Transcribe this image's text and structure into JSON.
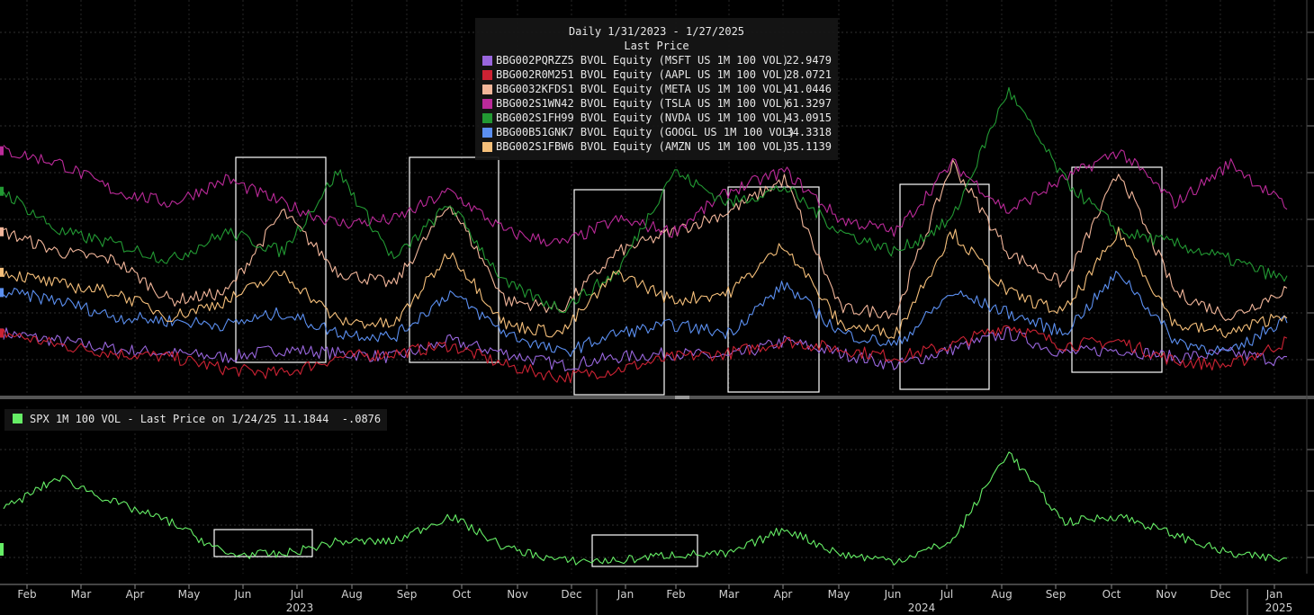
{
  "upper_legend": {
    "title": "Daily 1/31/2023 - 1/27/2025",
    "subtitle": "Last Price",
    "items": [
      {
        "label": "BBG002PQRZZ5 BVOL Equity (MSFT US 1M 100 VOL)",
        "value": "22.9479",
        "color": "#9966dd"
      },
      {
        "label": "BBG002R0M251 BVOL Equity (AAPL US 1M 100 VOL)",
        "value": "28.0721",
        "color": "#cc2233"
      },
      {
        "label": "BBG0032KFDS1 BVOL Equity (META US 1M 100 VOL)",
        "value": "41.0446",
        "color": "#f2b69a"
      },
      {
        "label": "BBG002S1WN42 BVOL Equity (TSLA US 1M 100 VOL)",
        "value": "61.3297",
        "color": "#bb2a99"
      },
      {
        "label": "BBG002S1FH99 BVOL Equity (NVDA US 1M 100 VOL)",
        "value": "43.0915",
        "color": "#229933"
      },
      {
        "label": "BBG00B51GNK7 BVOL Equity (GOOGL US 1M 100 VOL)",
        "value": "34.3318",
        "color": "#5b8ff0"
      },
      {
        "label": "BBG002S1FBW6 BVOL Equity (AMZN US 1M 100 VOL)",
        "value": "35.1139",
        "color": "#f5bf7a"
      }
    ]
  },
  "lower_legend": {
    "text": "SPX 1M 100 VOL - Last Price on 1/24/25 11.1844  -.0876",
    "color": "#66ee66"
  },
  "x_axis": {
    "months": [
      "Feb",
      "Mar",
      "Apr",
      "May",
      "Jun",
      "Jul",
      "Aug",
      "Sep",
      "Oct",
      "Nov",
      "Dec",
      "Jan",
      "Feb",
      "Mar",
      "Apr",
      "May",
      "Jun",
      "Jul",
      "Aug",
      "Sep",
      "Oct",
      "Nov",
      "Dec",
      "Jan"
    ],
    "years": [
      "2023",
      "2024",
      "2025"
    ]
  },
  "chart_data": [
    {
      "type": "line",
      "title": "Daily 1/31/2023 - 1/27/2025",
      "subtitle": "Last Price",
      "x": [
        "2023-02",
        "2023-03",
        "2023-04",
        "2023-05",
        "2023-06",
        "2023-07",
        "2023-08",
        "2023-09",
        "2023-10",
        "2023-11",
        "2023-12",
        "2024-01",
        "2024-02",
        "2024-03",
        "2024-04",
        "2024-05",
        "2024-06",
        "2024-07",
        "2024-08",
        "2024-09",
        "2024-10",
        "2024-11",
        "2024-12",
        "2025-01"
      ],
      "ylim": [
        15,
        110
      ],
      "grid": true,
      "legend_position": "top-center",
      "series": [
        {
          "name": "BBG002PQRZZ5 BVOL Equity (MSFT US 1M 100 VOL)",
          "color": "#9966dd",
          "values": [
            30,
            28,
            26,
            25,
            24,
            26,
            25,
            24,
            28,
            25,
            22,
            24,
            25,
            24,
            28,
            25,
            22,
            26,
            30,
            25,
            26,
            24,
            25,
            23
          ]
        },
        {
          "name": "BBG002R0M251 BVOL Equity (AAPL US 1M 100 VOL)",
          "color": "#cc2233",
          "values": [
            30,
            27,
            25,
            24,
            21,
            20,
            24,
            25,
            27,
            22,
            19,
            21,
            24,
            25,
            28,
            26,
            24,
            27,
            32,
            27,
            28,
            23,
            22,
            28
          ]
        },
        {
          "name": "BBG0032KFDS1 BVOL Equity (META US 1M 100 VOL)",
          "color": "#f2b69a",
          "values": [
            55,
            50,
            48,
            38,
            40,
            60,
            45,
            42,
            62,
            38,
            36,
            50,
            55,
            60,
            68,
            36,
            35,
            72,
            50,
            42,
            70,
            40,
            34,
            41
          ]
        },
        {
          "name": "BBG002S1WN42 BVOL Equity (TSLA US 1M 100 VOL)",
          "color": "#bb2a99",
          "values": [
            75,
            72,
            65,
            62,
            68,
            62,
            57,
            58,
            65,
            55,
            52,
            58,
            55,
            65,
            70,
            58,
            55,
            72,
            60,
            68,
            75,
            62,
            72,
            61
          ]
        },
        {
          "name": "BBG002S1FH99 BVOL Equity (NVDA US 1M 100 VOL)",
          "color": "#229933",
          "values": [
            65,
            55,
            52,
            48,
            55,
            50,
            70,
            48,
            62,
            42,
            36,
            45,
            70,
            62,
            66,
            55,
            50,
            58,
            90,
            68,
            55,
            52,
            48,
            43
          ]
        },
        {
          "name": "BBG00B51GNK7 BVOL Equity (GOOGL US 1M 100 VOL)",
          "color": "#5b8ff0",
          "values": [
            40,
            38,
            34,
            33,
            32,
            35,
            30,
            29,
            40,
            30,
            25,
            30,
            32,
            30,
            42,
            30,
            27,
            40,
            35,
            30,
            45,
            28,
            25,
            34
          ]
        },
        {
          "name": "BBG002S1FBW6 BVOL Equity (AMZN US 1M 100 VOL)",
          "color": "#f5bf7a",
          "values": [
            45,
            42,
            40,
            34,
            38,
            45,
            33,
            32,
            50,
            32,
            30,
            45,
            38,
            40,
            52,
            32,
            30,
            55,
            40,
            35,
            55,
            32,
            30,
            35
          ]
        }
      ]
    },
    {
      "type": "line",
      "title": "SPX 1M 100 VOL - Last Price on 1/24/25 11.1844  -.0876",
      "x": [
        "2023-02",
        "2023-03",
        "2023-04",
        "2023-05",
        "2023-06",
        "2023-07",
        "2023-08",
        "2023-09",
        "2023-10",
        "2023-11",
        "2023-12",
        "2024-01",
        "2024-02",
        "2024-03",
        "2024-04",
        "2024-05",
        "2024-06",
        "2024-07",
        "2024-08",
        "2024-09",
        "2024-10",
        "2024-11",
        "2024-12",
        "2025-01"
      ],
      "ylim": [
        9,
        35
      ],
      "grid": true,
      "series": [
        {
          "name": "SPX 1M 100 VOL",
          "color": "#66ee66",
          "values": [
            19,
            24,
            20,
            17,
            12,
            12,
            14,
            14,
            18,
            13,
            11,
            11,
            12,
            12,
            16,
            12,
            11,
            14,
            28,
            17,
            18,
            15,
            12,
            11.18
          ]
        }
      ]
    }
  ]
}
